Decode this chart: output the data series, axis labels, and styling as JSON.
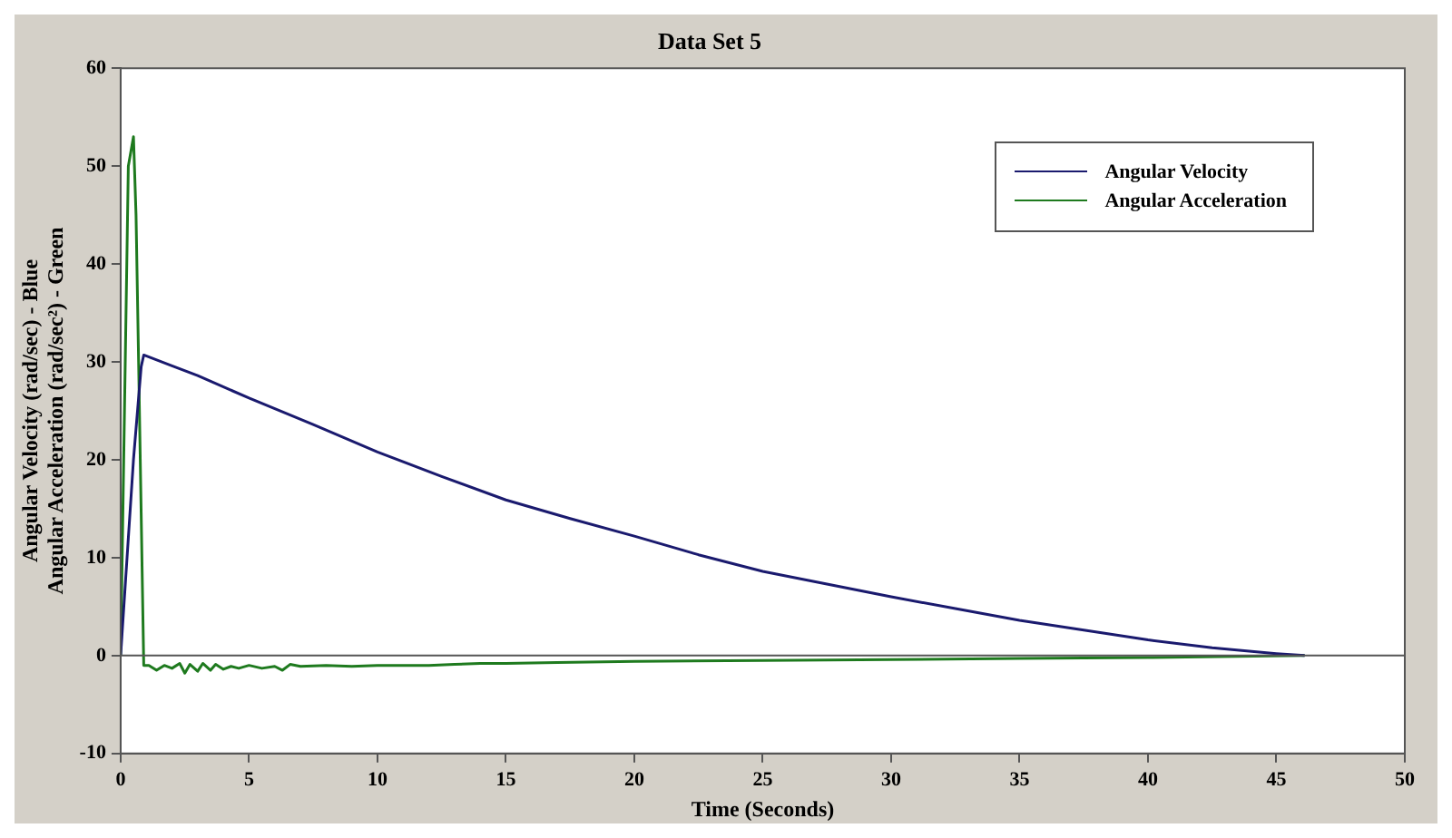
{
  "chart_data": {
    "type": "line",
    "title": "Data Set 5",
    "xlabel": "Time (Seconds)",
    "ylabel": "Angular Velocity (rad/sec) - Blue\nAngular Acceleration (rad/sec²) - Green",
    "xlim": [
      0,
      50
    ],
    "xticks": [
      0,
      5,
      10,
      15,
      20,
      25,
      30,
      35,
      40,
      45,
      50
    ],
    "ylim": [
      -10,
      60
    ],
    "yticks": [
      -10,
      0,
      10,
      20,
      30,
      40,
      50,
      60
    ],
    "grid": false,
    "legend": "top right",
    "ref_lines": [
      {
        "axis": "y",
        "value": 0,
        "color": "#555555"
      }
    ],
    "line_style": "solid",
    "marker": "none",
    "series": [
      {
        "name": "Angular Velocity",
        "color": "#1a1a6e",
        "x": [
          0,
          0.2,
          0.5,
          0.8,
          0.9,
          2,
          3,
          5,
          7.5,
          10,
          12.5,
          15,
          17.5,
          20,
          22.5,
          25,
          27.5,
          30,
          32.5,
          35,
          37.5,
          40,
          42.5,
          45,
          46.1
        ],
        "values": [
          0,
          8,
          20,
          29.5,
          30.7,
          29.6,
          28.6,
          26.3,
          23.6,
          20.8,
          18.3,
          15.9,
          14,
          12.2,
          10.3,
          8.6,
          7.3,
          6,
          4.8,
          3.6,
          2.6,
          1.6,
          0.8,
          0.2,
          0
        ]
      },
      {
        "name": "Angular Acceleration",
        "color": "#1e7a1e",
        "x": [
          0,
          0.15,
          0.3,
          0.5,
          0.6,
          0.7,
          0.9,
          1.1,
          1.4,
          1.7,
          2,
          2.3,
          2.5,
          2.7,
          3,
          3.2,
          3.5,
          3.7,
          4,
          4.3,
          4.6,
          5,
          5.5,
          6,
          6.3,
          6.6,
          7,
          8,
          9,
          10,
          11,
          12,
          13,
          14,
          15,
          17,
          20,
          25,
          30,
          35,
          40,
          46.1
        ],
        "values": [
          0,
          25,
          50,
          53,
          45,
          30,
          -1,
          -1,
          -1.5,
          -1,
          -1.3,
          -0.8,
          -1.8,
          -0.9,
          -1.6,
          -0.8,
          -1.5,
          -0.9,
          -1.4,
          -1.1,
          -1.3,
          -1,
          -1.3,
          -1.1,
          -1.5,
          -0.9,
          -1.1,
          -1,
          -1.1,
          -1,
          -1,
          -1,
          -0.9,
          -0.8,
          -0.8,
          -0.7,
          -0.6,
          -0.5,
          -0.4,
          -0.3,
          -0.2,
          0
        ]
      }
    ]
  }
}
